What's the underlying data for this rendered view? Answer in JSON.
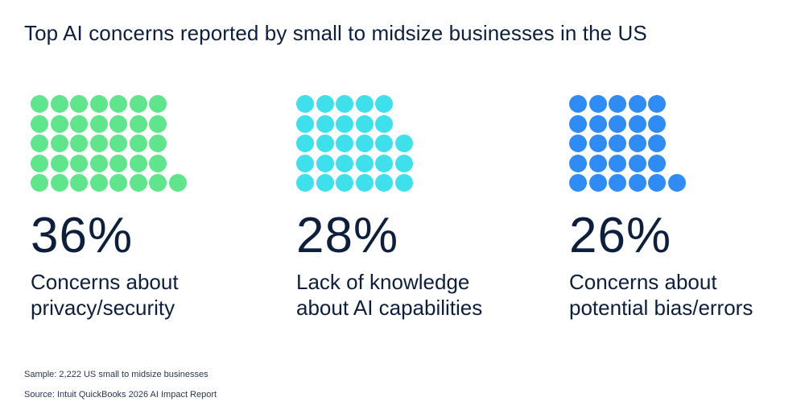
{
  "title": "Top AI concerns reported by small to midsize businesses in the US",
  "chart_data": {
    "type": "dot-matrix",
    "title": "Top AI concerns reported by small to midsize businesses in the US",
    "categories": [
      "Concerns about privacy/security",
      "Lack of knowledge about AI capabilities",
      "Concerns about potential bias/errors"
    ],
    "values": [
      36,
      28,
      26
    ],
    "unit": "%"
  },
  "stats": [
    {
      "percent": 36,
      "label": "36%",
      "desc_line1": "Concerns about",
      "desc_line2": "privacy/security",
      "color": "#5fe58c"
    },
    {
      "percent": 28,
      "label": "28%",
      "desc_line1": "Lack of knowledge",
      "desc_line2": "about AI capabilities",
      "color": "#3ee0ec"
    },
    {
      "percent": 26,
      "label": "26%",
      "desc_line1": "Concerns about",
      "desc_line2": "potential bias/errors",
      "color": "#2f8cf4"
    }
  ],
  "footer": {
    "sample": "Sample: 2,222 US small to midsize businesses",
    "source": "Source: Intuit QuickBooks 2026 AI Impact Report"
  }
}
